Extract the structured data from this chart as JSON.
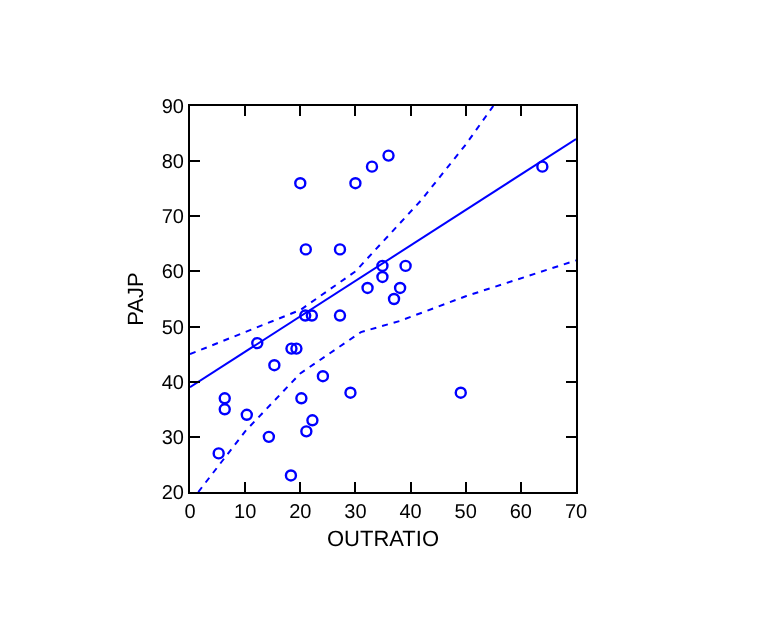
{
  "chart_data": {
    "type": "scatter",
    "xlabel": "OUTRATIO",
    "ylabel": "PAJP",
    "xlim": [
      0,
      70
    ],
    "ylim": [
      20,
      90
    ],
    "xticks": [
      0,
      10,
      20,
      30,
      40,
      50,
      60,
      70
    ],
    "yticks": [
      20,
      30,
      40,
      50,
      60,
      70,
      80,
      90
    ],
    "series": [
      {
        "marker": "circle",
        "color": "#0000ff",
        "x": [
          20,
          30,
          33,
          36,
          21,
          27.2,
          34.9,
          34.9,
          39.1,
          32.2,
          38.1,
          37,
          20.9,
          22.1,
          27.2,
          12.2,
          18.4,
          19.3,
          15.3,
          24.1,
          29.1,
          6.3,
          6.3,
          10.3,
          20.2,
          22.2,
          21.1,
          14.3,
          5.2,
          18.3,
          63.9,
          49.1
        ],
        "values": [
          76,
          76,
          79,
          81,
          64,
          64,
          61,
          59,
          61,
          57,
          57,
          55,
          52,
          52,
          52,
          47,
          46,
          46,
          43,
          41,
          38,
          37,
          35,
          34,
          37,
          33,
          31,
          30,
          27,
          23,
          79,
          38
        ]
      },
      {
        "type": "line",
        "marker": "none",
        "line_style": "solid",
        "color": "#0000ff",
        "x": [
          0,
          70
        ],
        "values": [
          39,
          84
        ]
      },
      {
        "type": "line",
        "marker": "none",
        "line_style": "dotted",
        "color": "#0000ff",
        "x": [
          0,
          10,
          20,
          30,
          42,
          50,
          55
        ],
        "values": [
          45,
          49,
          53,
          60,
          73,
          83,
          90
        ]
      },
      {
        "type": "line",
        "marker": "none",
        "line_style": "dotted",
        "color": "#0000ff",
        "x": [
          1.5,
          10,
          20,
          31,
          38,
          50,
          70
        ],
        "values": [
          20,
          31,
          41.5,
          49,
          51,
          55.5,
          62
        ]
      }
    ]
  }
}
